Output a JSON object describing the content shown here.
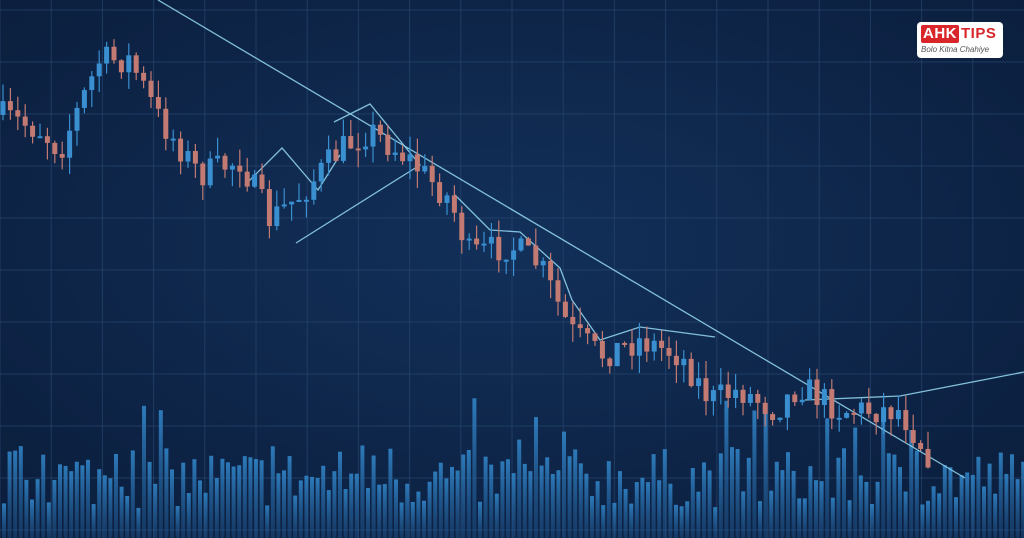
{
  "logo": {
    "brand_left": "AHK",
    "brand_right": "TIPS",
    "tagline": "Bolo Kitna Chahiye"
  }
}
